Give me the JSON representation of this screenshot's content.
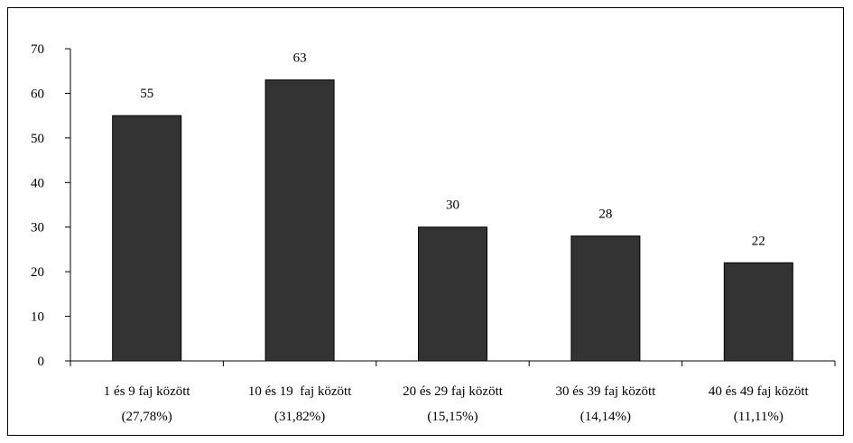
{
  "chart_data": {
    "type": "bar",
    "categories": [
      [
        "1 és 9 faj között",
        "(27,78%)"
      ],
      [
        "10 és 19  faj között",
        "(31,82%)"
      ],
      [
        "20 és 29 faj között",
        "(15,15%)"
      ],
      [
        "30 és 39 faj között",
        "(14,14%)"
      ],
      [
        "40 és 49 faj között",
        "(11,11%)"
      ]
    ],
    "values": [
      55,
      63,
      30,
      28,
      22
    ],
    "data_labels": [
      "55",
      "63",
      "30",
      "28",
      "22"
    ],
    "y_ticks": [
      0,
      10,
      20,
      30,
      40,
      50,
      60,
      70
    ],
    "ylim": [
      0,
      70
    ],
    "title": "",
    "xlabel": "",
    "ylabel": "",
    "grid": false,
    "legend": "none",
    "colors": {
      "bar_fill": "#333333",
      "bar_stroke": "#000000",
      "axis": "#000000"
    }
  }
}
